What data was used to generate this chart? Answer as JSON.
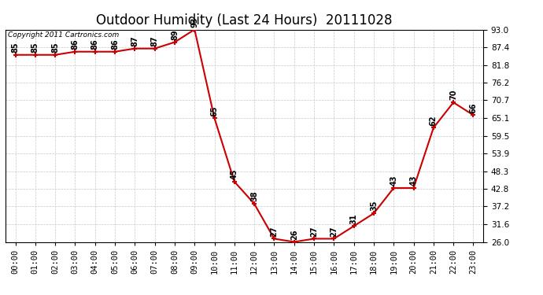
{
  "title": "Outdoor Humidity (Last 24 Hours)  20111028",
  "copyright_text": "Copyright 2011 Cartronics.com",
  "hours": [
    0,
    1,
    2,
    3,
    4,
    5,
    6,
    7,
    8,
    9,
    10,
    11,
    12,
    13,
    14,
    15,
    16,
    17,
    18,
    19,
    20,
    21,
    22,
    23
  ],
  "x_labels": [
    "00:00",
    "01:00",
    "02:00",
    "03:00",
    "04:00",
    "05:00",
    "06:00",
    "07:00",
    "08:00",
    "09:00",
    "10:00",
    "11:00",
    "12:00",
    "13:00",
    "14:00",
    "15:00",
    "16:00",
    "17:00",
    "18:00",
    "19:00",
    "20:00",
    "21:00",
    "22:00",
    "23:00"
  ],
  "values": [
    85,
    85,
    85,
    86,
    86,
    86,
    87,
    87,
    89,
    93,
    65,
    45,
    38,
    27,
    26,
    27,
    27,
    31,
    35,
    43,
    43,
    62,
    70,
    66
  ],
  "ylim": [
    26.0,
    93.0
  ],
  "yticks": [
    26.0,
    31.6,
    37.2,
    42.8,
    48.3,
    53.9,
    59.5,
    65.1,
    70.7,
    76.2,
    81.8,
    87.4,
    93.0
  ],
  "line_color": "#cc0000",
  "marker_color": "#cc0000",
  "bg_color": "#ffffff",
  "plot_bg_color": "#ffffff",
  "grid_color": "#c8c8c8",
  "title_fontsize": 12,
  "copyright_fontsize": 6.5,
  "label_fontsize": 7,
  "tick_fontsize": 7.5
}
